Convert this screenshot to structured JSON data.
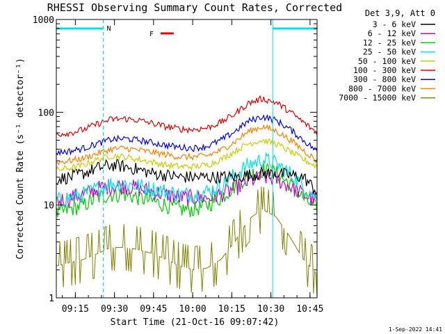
{
  "chart_data": {
    "type": "line",
    "title": "RHESSI Observing Summary Count Rates, Corrected",
    "xlabel": "Start Time (21-Oct-16 09:07:42)",
    "ylabel": "Corrected Count Rate (s⁻¹ detector⁻¹)",
    "yscale": "log",
    "ylim": [
      1,
      1000
    ],
    "xlim_minutes": [
      0,
      100
    ],
    "x_tick_labels": [
      "09:15",
      "09:30",
      "09:45",
      "10:00",
      "10:15",
      "10:30",
      "10:45"
    ],
    "x_tick_minutes": [
      7.3,
      22.3,
      37.3,
      52.3,
      67.3,
      82.3,
      97.3
    ],
    "y_tick_labels": [
      "1",
      "10",
      "100",
      "1000"
    ],
    "y_tick_values": [
      1,
      10,
      100,
      1000
    ],
    "legend_title": "Det 3,9, Att 0",
    "legend_position": "right",
    "grid": false,
    "annotations": {
      "night_label": "N",
      "flare_label": "F",
      "night_intervals_minutes": [
        [
          0,
          18
        ],
        [
          83,
          100
        ]
      ],
      "flare_interval_minutes": [
        40,
        45
      ]
    },
    "timestamp": "1-Sep-2022 14:41",
    "series": [
      {
        "name": "3 - 6 keV",
        "color": "#000000",
        "values": [
          19,
          20,
          22,
          25,
          27,
          26,
          24,
          22,
          21,
          20,
          20,
          20,
          20,
          20,
          21,
          22,
          22,
          21,
          20,
          14
        ]
      },
      {
        "name": "6 - 12 keV",
        "color": "#cc00cc",
        "values": [
          11,
          12,
          13,
          15,
          16,
          16,
          15,
          14,
          13,
          12,
          12,
          12,
          13,
          15,
          18,
          20,
          19,
          16,
          13,
          11
        ]
      },
      {
        "name": "12 - 25 keV",
        "color": "#00cc00",
        "values": [
          8,
          9,
          10,
          12,
          13,
          13,
          12,
          11,
          10,
          9,
          9,
          10,
          12,
          16,
          21,
          24,
          22,
          17,
          12,
          9
        ]
      },
      {
        "name": "25 - 50 keV",
        "color": "#00e0e0",
        "values": [
          11,
          12,
          13,
          15,
          17,
          17,
          16,
          15,
          14,
          13,
          13,
          14,
          16,
          21,
          27,
          31,
          28,
          22,
          16,
          12
        ]
      },
      {
        "name": "50 - 100 keV",
        "color": "#cccc00",
        "values": [
          24,
          25,
          27,
          31,
          34,
          33,
          31,
          29,
          27,
          26,
          26,
          27,
          31,
          38,
          46,
          50,
          46,
          38,
          31,
          26
        ]
      },
      {
        "name": "100 - 300 keV",
        "color": "#e00000",
        "values": [
          58,
          60,
          65,
          75,
          84,
          85,
          82,
          76,
          70,
          66,
          65,
          68,
          78,
          96,
          125,
          140,
          128,
          102,
          78,
          60
        ]
      },
      {
        "name": "300 - 800 keV",
        "color": "#0000e0",
        "values": [
          37,
          38,
          41,
          46,
          51,
          52,
          50,
          47,
          44,
          42,
          41,
          43,
          50,
          62,
          80,
          90,
          82,
          66,
          50,
          38
        ]
      },
      {
        "name": "800 - 7000 keV",
        "color": "#ff8000",
        "values": [
          29,
          30,
          32,
          36,
          40,
          41,
          39,
          37,
          35,
          33,
          33,
          34,
          39,
          48,
          62,
          70,
          63,
          51,
          39,
          30
        ]
      },
      {
        "name": "7000 - 15000 keV",
        "color": "#808000",
        "values": [
          2.2,
          2.4,
          2.6,
          3.0,
          3.5,
          3.5,
          3.3,
          3.0,
          2.6,
          2.2,
          2.0,
          2.1,
          2.6,
          4.0,
          7.0,
          9.0,
          7.5,
          4.6,
          2.6,
          1.8
        ]
      }
    ]
  }
}
